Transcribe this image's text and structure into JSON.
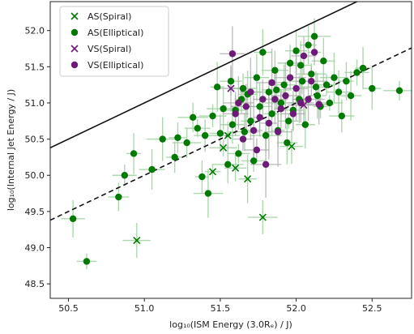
{
  "chart_data": {
    "type": "scatter",
    "title": "",
    "xlabel": "log₁₀(ISM Energy (3.0Rₑ) / J)",
    "ylabel": "log₁₀(Internal Jet Energy / J)",
    "xlim": [
      50.38,
      52.76
    ],
    "ylim": [
      48.3,
      52.4
    ],
    "xticks": [
      50.5,
      51.0,
      51.5,
      52.0,
      52.5
    ],
    "xtick_labels": [
      "50.5",
      "51.0",
      "51.5",
      "52.0",
      "52.5"
    ],
    "yticks": [
      48.5,
      49.0,
      49.5,
      50.0,
      50.5,
      51.0,
      51.5,
      52.0
    ],
    "ytick_labels": [
      "48.5",
      "49.0",
      "49.5",
      "50.0",
      "50.5",
      "51.0",
      "51.5",
      "52.0"
    ],
    "grid": false,
    "legend_position": "top-left",
    "colors": {
      "AS": "#007a00",
      "AS_err": "#9fd19f",
      "VS": "#6e1a78",
      "VS_err": "#a9a9a9",
      "line": "#111111"
    },
    "reference_lines": [
      {
        "name": "",
        "style": "solid",
        "slope": 1,
        "intercept": 0
      },
      {
        "name": "",
        "style": "dashed",
        "slope": 1,
        "intercept": -1
      }
    ],
    "series": [
      {
        "name": "AS(Spiral)",
        "marker": "x",
        "color": "#007a00",
        "points": [
          {
            "x": 51.45,
            "y": 50.05
          },
          {
            "x": 51.52,
            "y": 50.38
          },
          {
            "x": 51.55,
            "y": 50.55
          },
          {
            "x": 51.6,
            "y": 50.1
          },
          {
            "x": 51.68,
            "y": 49.95
          },
          {
            "x": 51.78,
            "y": 49.42
          },
          {
            "x": 50.95,
            "y": 49.1
          },
          {
            "x": 51.97,
            "y": 50.4
          }
        ]
      },
      {
        "name": "AS(Elliptical)",
        "marker": "o",
        "color": "#007a00",
        "points": [
          {
            "x": 50.53,
            "y": 49.4
          },
          {
            "x": 50.62,
            "y": 48.81
          },
          {
            "x": 50.83,
            "y": 49.7
          },
          {
            "x": 50.87,
            "y": 50.0
          },
          {
            "x": 50.93,
            "y": 50.3
          },
          {
            "x": 51.05,
            "y": 50.08
          },
          {
            "x": 51.12,
            "y": 50.5
          },
          {
            "x": 51.2,
            "y": 50.25
          },
          {
            "x": 51.22,
            "y": 50.52
          },
          {
            "x": 51.28,
            "y": 50.45
          },
          {
            "x": 51.32,
            "y": 50.8
          },
          {
            "x": 51.35,
            "y": 50.65
          },
          {
            "x": 51.38,
            "y": 49.98
          },
          {
            "x": 51.4,
            "y": 50.55
          },
          {
            "x": 51.42,
            "y": 49.75
          },
          {
            "x": 51.45,
            "y": 50.82
          },
          {
            "x": 51.48,
            "y": 51.22
          },
          {
            "x": 51.5,
            "y": 50.58
          },
          {
            "x": 51.52,
            "y": 50.92
          },
          {
            "x": 51.55,
            "y": 50.15
          },
          {
            "x": 51.57,
            "y": 51.3
          },
          {
            "x": 51.6,
            "y": 50.9
          },
          {
            "x": 51.62,
            "y": 50.3
          },
          {
            "x": 51.64,
            "y": 51.05
          },
          {
            "x": 51.66,
            "y": 50.6
          },
          {
            "x": 51.68,
            "y": 51.12
          },
          {
            "x": 51.7,
            "y": 50.75
          },
          {
            "x": 51.72,
            "y": 50.2
          },
          {
            "x": 51.74,
            "y": 51.35
          },
          {
            "x": 51.76,
            "y": 50.95
          },
          {
            "x": 51.78,
            "y": 51.7
          },
          {
            "x": 51.8,
            "y": 50.55
          },
          {
            "x": 51.82,
            "y": 51.15
          },
          {
            "x": 51.84,
            "y": 50.85
          },
          {
            "x": 51.86,
            "y": 51.45
          },
          {
            "x": 51.88,
            "y": 50.62
          },
          {
            "x": 51.9,
            "y": 51.0
          },
          {
            "x": 51.92,
            "y": 51.25
          },
          {
            "x": 51.94,
            "y": 50.45
          },
          {
            "x": 51.96,
            "y": 51.55
          },
          {
            "x": 51.98,
            "y": 50.9
          },
          {
            "x": 52.0,
            "y": 51.72
          },
          {
            "x": 52.02,
            "y": 51.05
          },
          {
            "x": 52.04,
            "y": 51.3
          },
          {
            "x": 52.06,
            "y": 50.7
          },
          {
            "x": 52.08,
            "y": 51.8
          },
          {
            "x": 52.1,
            "y": 51.4
          },
          {
            "x": 52.12,
            "y": 51.92
          },
          {
            "x": 52.14,
            "y": 51.1
          },
          {
            "x": 52.16,
            "y": 50.95
          },
          {
            "x": 52.18,
            "y": 51.58
          },
          {
            "x": 52.2,
            "y": 51.25
          },
          {
            "x": 52.22,
            "y": 51.0
          },
          {
            "x": 52.25,
            "y": 51.35
          },
          {
            "x": 52.28,
            "y": 51.15
          },
          {
            "x": 52.3,
            "y": 50.82
          },
          {
            "x": 52.33,
            "y": 51.3
          },
          {
            "x": 52.36,
            "y": 51.1
          },
          {
            "x": 52.4,
            "y": 51.42
          },
          {
            "x": 52.44,
            "y": 51.48
          },
          {
            "x": 52.5,
            "y": 51.2
          },
          {
            "x": 52.68,
            "y": 51.17
          },
          {
            "x": 51.58,
            "y": 50.7
          },
          {
            "x": 51.65,
            "y": 51.2
          },
          {
            "x": 51.87,
            "y": 51.18
          },
          {
            "x": 51.95,
            "y": 50.75
          },
          {
            "x": 52.13,
            "y": 51.22
          },
          {
            "x": 52.03,
            "y": 51.52
          }
        ]
      },
      {
        "name": "VS(Spiral)",
        "marker": "x",
        "color": "#6e1a78",
        "points": [
          {
            "x": 51.57,
            "y": 51.2
          },
          {
            "x": 52.05,
            "y": 50.97
          }
        ]
      },
      {
        "name": "VS(Elliptical)",
        "marker": "o",
        "color": "#6e1a78",
        "points": [
          {
            "x": 51.58,
            "y": 51.68
          },
          {
            "x": 51.6,
            "y": 50.85
          },
          {
            "x": 51.62,
            "y": 51.0
          },
          {
            "x": 51.65,
            "y": 50.5
          },
          {
            "x": 51.67,
            "y": 50.95
          },
          {
            "x": 51.7,
            "y": 51.15
          },
          {
            "x": 51.72,
            "y": 50.62
          },
          {
            "x": 51.74,
            "y": 50.35
          },
          {
            "x": 51.76,
            "y": 50.8
          },
          {
            "x": 51.78,
            "y": 51.05
          },
          {
            "x": 51.8,
            "y": 50.15
          },
          {
            "x": 51.82,
            "y": 50.72
          },
          {
            "x": 51.84,
            "y": 51.28
          },
          {
            "x": 51.86,
            "y": 51.05
          },
          {
            "x": 51.88,
            "y": 50.6
          },
          {
            "x": 51.9,
            "y": 50.92
          },
          {
            "x": 51.93,
            "y": 51.1
          },
          {
            "x": 51.96,
            "y": 51.35
          },
          {
            "x": 51.98,
            "y": 50.85
          },
          {
            "x": 52.0,
            "y": 51.2
          },
          {
            "x": 52.03,
            "y": 51.0
          },
          {
            "x": 52.05,
            "y": 51.65
          },
          {
            "x": 52.08,
            "y": 51.05
          },
          {
            "x": 52.1,
            "y": 51.3
          },
          {
            "x": 52.12,
            "y": 51.7
          },
          {
            "x": 52.15,
            "y": 50.98
          }
        ]
      }
    ]
  }
}
